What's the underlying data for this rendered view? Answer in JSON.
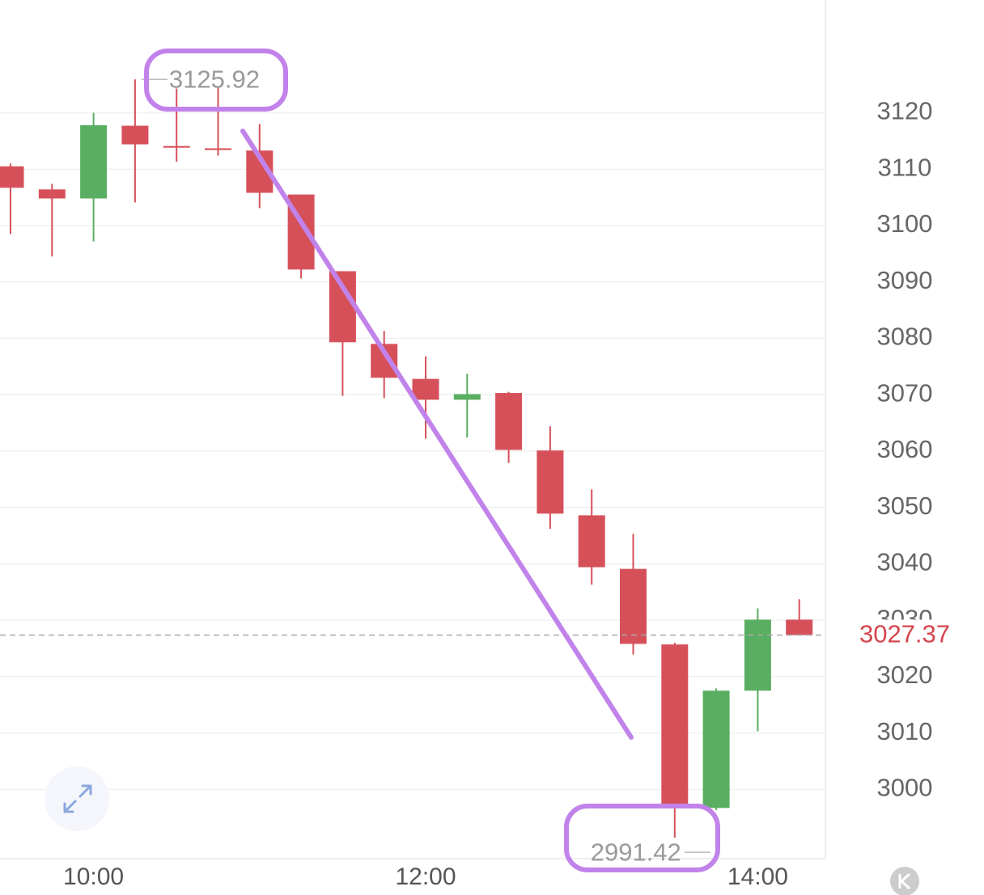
{
  "chart_data": {
    "type": "candlestick",
    "categories": [
      null,
      null,
      "10:00",
      null,
      null,
      null,
      null,
      null,
      null,
      null,
      "12:00",
      null,
      null,
      null,
      null,
      null,
      null,
      null,
      "14:00",
      null
    ],
    "open": [
      3110.5,
      3106.4,
      3104.8,
      3117.7,
      3114.1,
      3113.7,
      3113.3,
      3105.5,
      3091.9,
      3079.0,
      3072.8,
      3069.1,
      3070.3,
      3060.1,
      3048.6,
      3039.1,
      3025.7,
      2996.7,
      3017.5,
      3030.1
    ],
    "high": [
      3111.0,
      3107.4,
      3120.0,
      3125.92,
      3124.3,
      3124.6,
      3118.0,
      3105.5,
      3091.9,
      3081.3,
      3076.8,
      3073.7,
      3070.5,
      3064.4,
      3053.2,
      3045.3,
      3026.0,
      3017.9,
      3032.1,
      3033.7
    ],
    "low": [
      3098.5,
      3094.5,
      3097.2,
      3104.1,
      3111.3,
      3112.4,
      3103.1,
      3090.6,
      3069.8,
      3069.4,
      3062.2,
      3062.4,
      3057.9,
      3046.2,
      3036.3,
      3023.9,
      2991.42,
      2996.3,
      3010.3,
      3027.37
    ],
    "close": [
      3106.7,
      3104.8,
      3117.8,
      3114.4,
      3113.8,
      3113.4,
      3105.8,
      3092.2,
      3079.3,
      3073.0,
      3069.1,
      3070.1,
      3060.2,
      3048.9,
      3039.4,
      3025.8,
      2997.4,
      3017.5,
      3030.1,
      3027.37
    ],
    "up_color": "#5aae61",
    "down_color": "#d6505a",
    "ylim": [
      2988,
      3140
    ],
    "yticks": [
      3000,
      3010,
      3020,
      3030,
      3040,
      3050,
      3060,
      3070,
      3080,
      3090,
      3100,
      3110,
      3120
    ],
    "grid": true
  }
}
